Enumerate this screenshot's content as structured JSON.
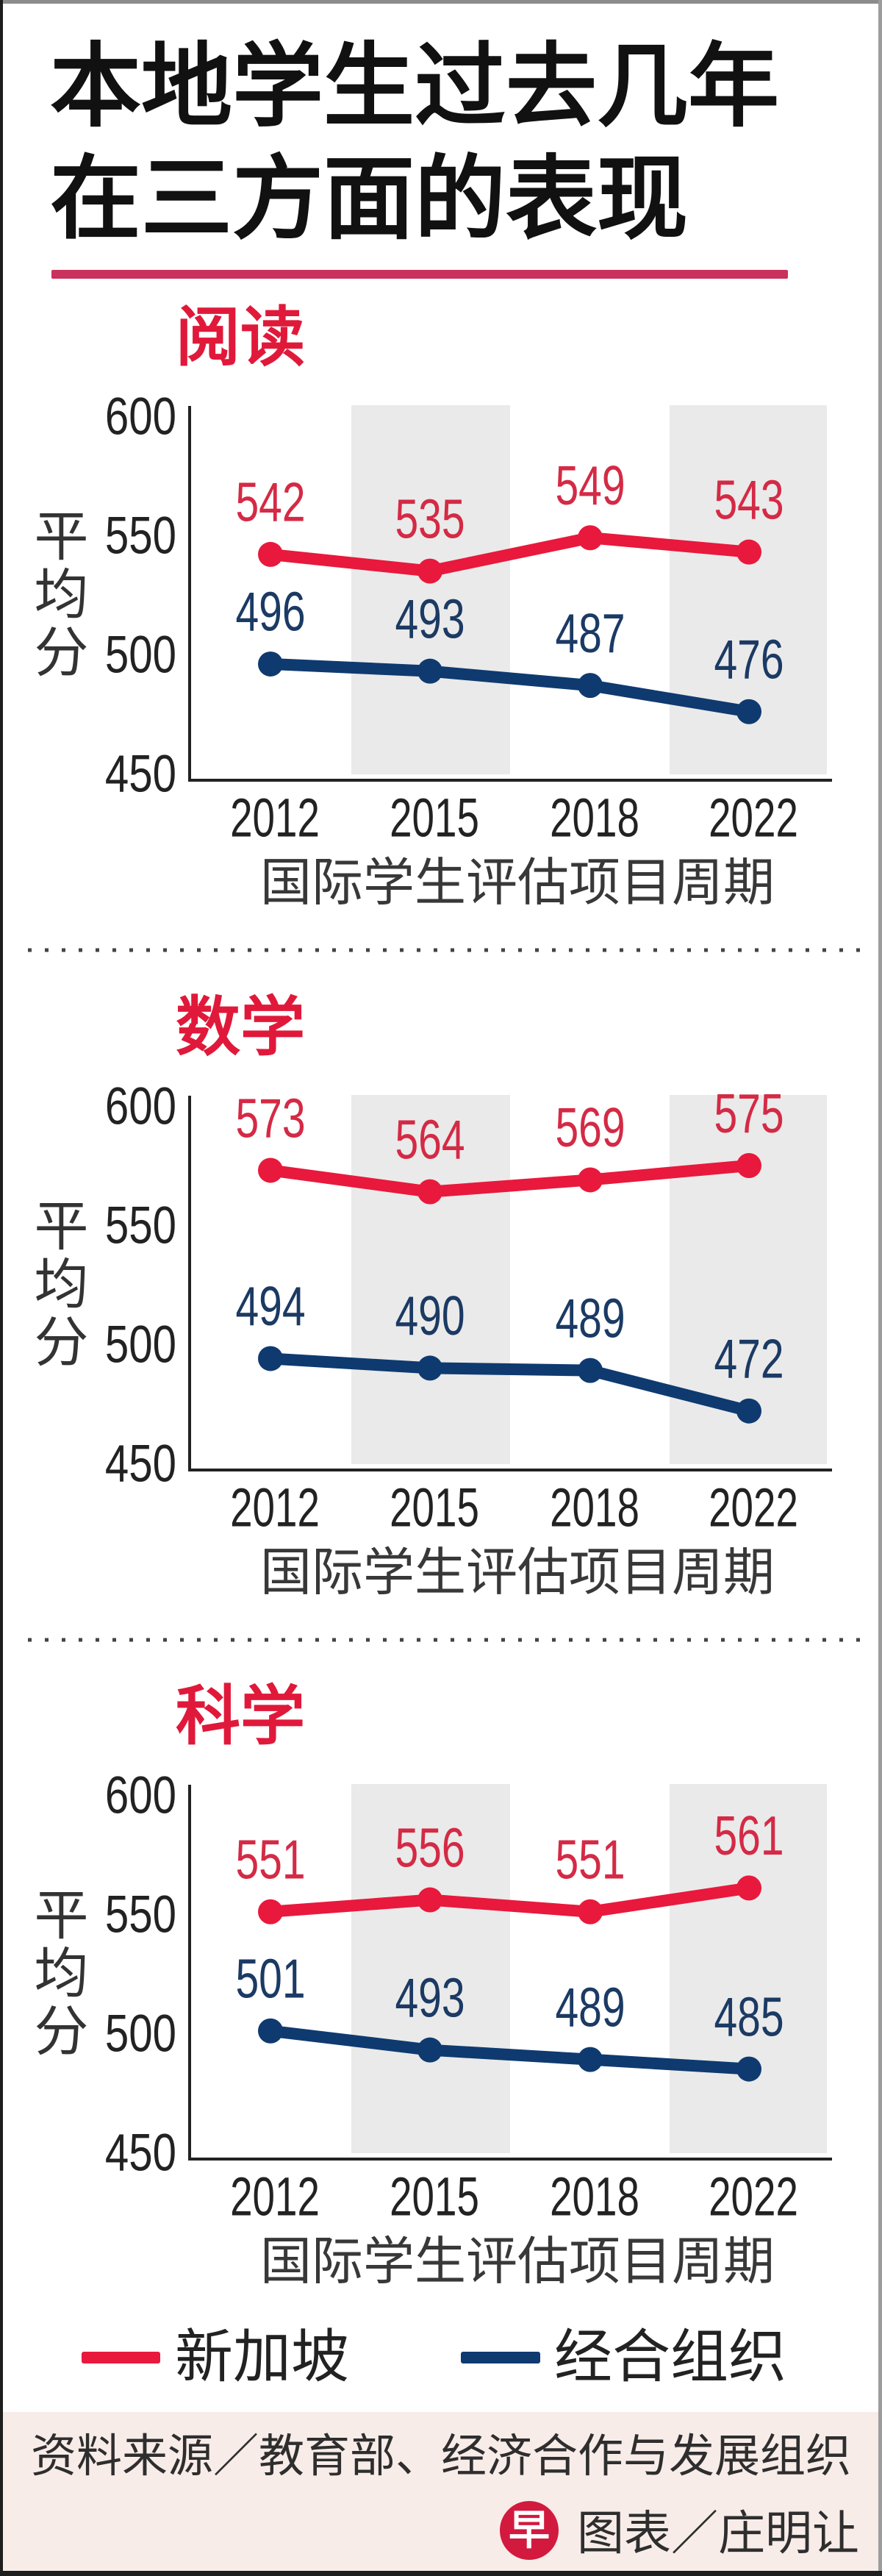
{
  "header": {
    "title_lines": [
      "本地学生过去几年",
      "在三方面的表现"
    ]
  },
  "colors": {
    "singapore": "#e8193c",
    "singapore_label": "#d42a45",
    "oecd": "#0f3a70",
    "oecd_label": "#1b3a64",
    "title_rule": "#c9325c",
    "section_title": "#e0193a",
    "band": "#eaeaea",
    "footer_bg": "#f8ece9",
    "logo": "#d21a3e"
  },
  "chart_data": [
    {
      "type": "line",
      "title": "阅读",
      "xlabel": "国际学生评估项目周期",
      "ylabel": "平均分",
      "categories": [
        "2012",
        "2015",
        "2018",
        "2022"
      ],
      "yticks": [
        600,
        550,
        500,
        450
      ],
      "ylim": [
        450,
        600
      ],
      "grid": false,
      "legend_position": "bottom",
      "series": [
        {
          "name": "新加坡",
          "key": "singapore",
          "values": [
            542,
            535,
            549,
            543
          ]
        },
        {
          "name": "经合组织",
          "key": "oecd",
          "values": [
            496,
            493,
            487,
            476
          ]
        }
      ]
    },
    {
      "type": "line",
      "title": "数学",
      "xlabel": "国际学生评估项目周期",
      "ylabel": "平均分",
      "categories": [
        "2012",
        "2015",
        "2018",
        "2022"
      ],
      "yticks": [
        600,
        550,
        500,
        450
      ],
      "ylim": [
        450,
        600
      ],
      "grid": false,
      "legend_position": "bottom",
      "series": [
        {
          "name": "新加坡",
          "key": "singapore",
          "values": [
            573,
            564,
            569,
            575
          ]
        },
        {
          "name": "经合组织",
          "key": "oecd",
          "values": [
            494,
            490,
            489,
            472
          ]
        }
      ]
    },
    {
      "type": "line",
      "title": "科学",
      "xlabel": "国际学生评估项目周期",
      "ylabel": "平均分",
      "categories": [
        "2012",
        "2015",
        "2018",
        "2022"
      ],
      "yticks": [
        600,
        550,
        500,
        450
      ],
      "ylim": [
        450,
        600
      ],
      "grid": false,
      "legend_position": "bottom",
      "series": [
        {
          "name": "新加坡",
          "key": "singapore",
          "values": [
            551,
            556,
            551,
            561
          ]
        },
        {
          "name": "经合组织",
          "key": "oecd",
          "values": [
            501,
            493,
            489,
            485
          ]
        }
      ]
    }
  ],
  "legend": {
    "items": [
      {
        "label": "新加坡",
        "key": "singapore"
      },
      {
        "label": "经合组织",
        "key": "oecd"
      }
    ]
  },
  "footer": {
    "source": "资料来源／教育部、经济合作与发展组织",
    "logo_glyph": "早",
    "credit": "图表／庄明让"
  }
}
